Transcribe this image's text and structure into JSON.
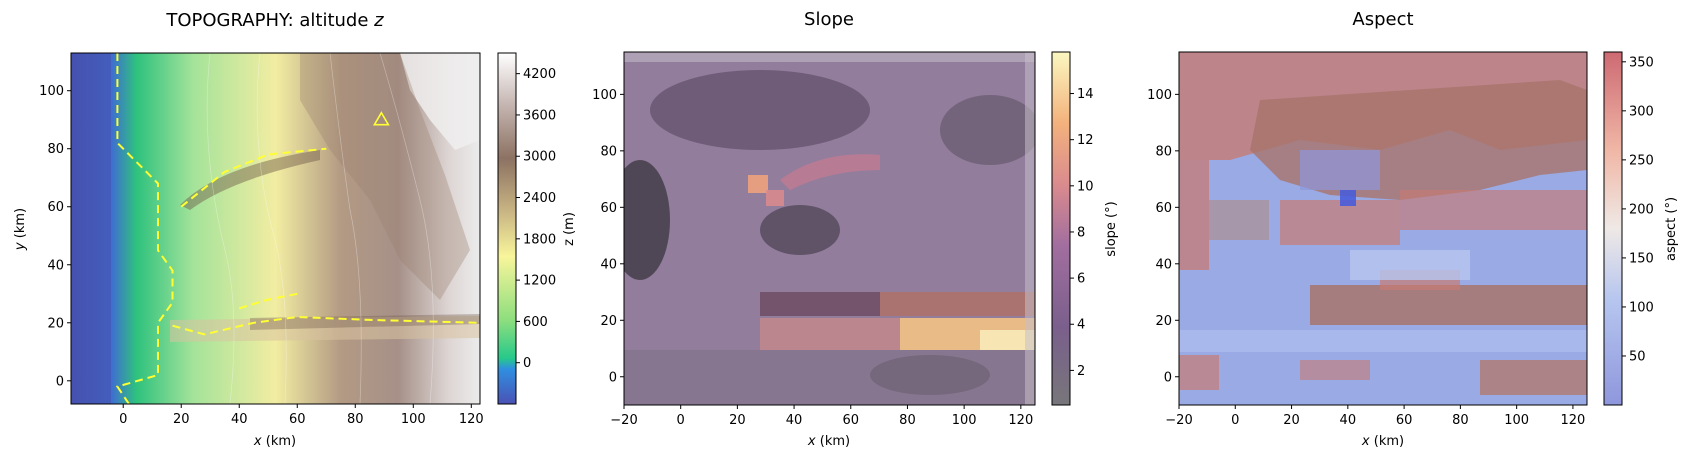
{
  "chart_data": [
    {
      "type": "heatmap",
      "title_prefix": "TOPOGRAPHY: altitude ",
      "title_var": "z",
      "xlabel_var": "x",
      "xlabel_unit": " (km)",
      "ylabel_var": "y",
      "ylabel_unit": " (km)",
      "xlim": [
        -18,
        123
      ],
      "ylim": [
        -8,
        113
      ],
      "xticks": [
        0,
        20,
        40,
        60,
        80,
        100,
        120
      ],
      "yticks": [
        0,
        20,
        40,
        60,
        80,
        100
      ],
      "colorbar_label": "z (m)",
      "colorbar_range": [
        -600,
        4500
      ],
      "colorbar_ticks": [
        0,
        600,
        1200,
        1800,
        2400,
        3000,
        3600,
        4200
      ],
      "colormap": "terrain",
      "coastline_color": "#ffff33",
      "coastline": [
        [
          -2,
          113
        ],
        [
          -2,
          82
        ],
        [
          12,
          68
        ],
        [
          12,
          45
        ],
        [
          17,
          38
        ],
        [
          17,
          27
        ],
        [
          12,
          20
        ],
        [
          12,
          2
        ],
        [
          -2,
          -2
        ],
        [
          2,
          -8
        ]
      ],
      "ridge_north": [
        [
          20,
          60
        ],
        [
          35,
          72
        ],
        [
          50,
          78
        ],
        [
          70,
          80
        ]
      ],
      "ridge_south": [
        [
          40,
          25
        ],
        [
          50,
          28
        ],
        [
          60,
          30
        ]
      ],
      "river": [
        [
          17,
          19
        ],
        [
          28,
          16
        ],
        [
          45,
          20
        ],
        [
          60,
          22
        ],
        [
          85,
          21
        ],
        [
          123,
          20
        ]
      ],
      "summit_marker": {
        "x": 89,
        "y": 90,
        "shape": "triangle"
      }
    },
    {
      "type": "heatmap",
      "title": "Slope",
      "xlabel_var": "x",
      "xlabel_unit": " (km)",
      "xlim": [
        -20,
        125
      ],
      "ylim": [
        -10,
        115
      ],
      "xticks": [
        -20,
        0,
        20,
        40,
        60,
        80,
        100,
        120
      ],
      "yticks": [
        0,
        20,
        40,
        60,
        80,
        100
      ],
      "colorbar_label": "slope (°)",
      "colorbar_range": [
        0.5,
        15.8
      ],
      "colorbar_ticks": [
        2,
        4,
        6,
        8,
        10,
        12,
        14
      ],
      "colormap": "magma (semi-transparent)"
    },
    {
      "type": "heatmap",
      "title": "Aspect",
      "xlabel_var": "x",
      "xlabel_unit": " (km)",
      "xlim": [
        -20,
        125
      ],
      "ylim": [
        -10,
        115
      ],
      "xticks": [
        -20,
        0,
        20,
        40,
        60,
        80,
        100,
        120
      ],
      "yticks": [
        0,
        20,
        40,
        60,
        80,
        100
      ],
      "colorbar_label": "aspect (°)",
      "colorbar_range": [
        0,
        360
      ],
      "colorbar_ticks": [
        50,
        100,
        150,
        200,
        250,
        300,
        350
      ],
      "colormap": "coolwarm (semi-transparent)"
    }
  ]
}
